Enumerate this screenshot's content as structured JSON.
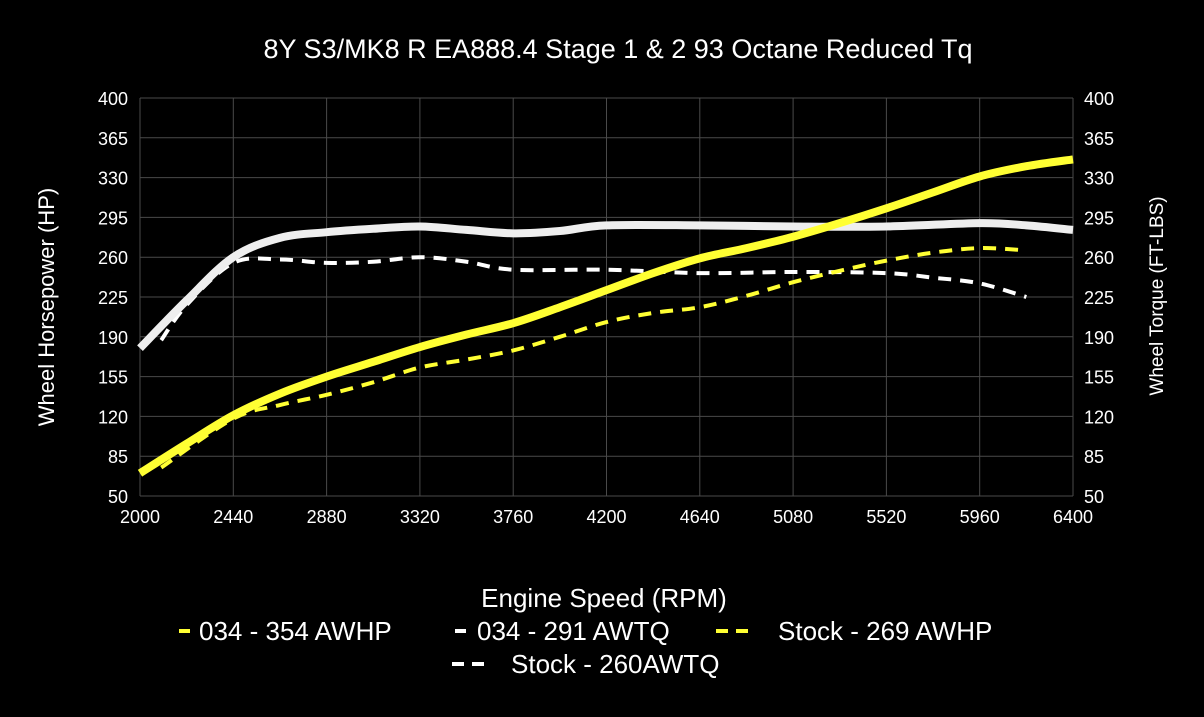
{
  "chart_data": {
    "type": "line",
    "title": "8Y S3/MK8 R EA888.4 Stage 1 & 2 93 Octane Reduced Tq",
    "xlabel": "Engine Speed (RPM)",
    "ylabel": "Wheel Horsepower (HP)",
    "y2label": "Wheel Torque (FT-LBS)",
    "xlim": [
      2000,
      6400
    ],
    "ylim": [
      50,
      400
    ],
    "y2lim": [
      50,
      400
    ],
    "grid": true,
    "legend_position": "bottom",
    "x_ticks": [
      "2000",
      "2440",
      "2880",
      "3320",
      "3760",
      "4200",
      "4640",
      "5080",
      "5520",
      "5960",
      "6400"
    ],
    "y_ticks": [
      "50",
      "85",
      "120",
      "155",
      "190",
      "225",
      "260",
      "295",
      "330",
      "365",
      "400"
    ],
    "y2_ticks": [
      "50",
      "85",
      "120",
      "155",
      "190",
      "225",
      "260",
      "295",
      "330",
      "365",
      "400"
    ],
    "series": [
      {
        "name": "034 - 354 AWHP",
        "color": "#ffff33",
        "style": "solid",
        "axis": "left",
        "x": [
          2000,
          2220,
          2440,
          2660,
          2880,
          3100,
          3320,
          3540,
          3760,
          3980,
          4200,
          4420,
          4640,
          4860,
          5080,
          5300,
          5520,
          5740,
          5960,
          6180,
          6400
        ],
        "y": [
          70,
          96,
          121,
          140,
          155,
          168,
          181,
          192,
          202,
          216,
          231,
          246,
          259,
          268,
          278,
          290,
          303,
          317,
          331,
          340,
          346
        ]
      },
      {
        "name": "034 - 291 AWTQ",
        "color": "#ffffff",
        "style": "solid",
        "axis": "right",
        "x": [
          2000,
          2220,
          2440,
          2660,
          2880,
          3100,
          3320,
          3540,
          3760,
          3980,
          4200,
          4640,
          5080,
          5520,
          5960,
          6180,
          6400
        ],
        "y": [
          180,
          222,
          260,
          277,
          282,
          285,
          287,
          284,
          281,
          283,
          288,
          288,
          287,
          287,
          290,
          288,
          284
        ]
      },
      {
        "name": "Stock - 269 AWHP",
        "color": "#ffff33",
        "style": "dashed",
        "axis": "left",
        "x": [
          2100,
          2440,
          2660,
          2880,
          3100,
          3320,
          3540,
          3760,
          3980,
          4200,
          4420,
          4640,
          4860,
          5080,
          5300,
          5520,
          5740,
          5960,
          6180
        ],
        "y": [
          75,
          118,
          130,
          139,
          150,
          163,
          170,
          178,
          190,
          203,
          211,
          216,
          226,
          238,
          248,
          257,
          264,
          268,
          266
        ]
      },
      {
        "name": "Stock - 260AWTQ",
        "color": "#ffffff",
        "style": "dashed",
        "axis": "right",
        "x": [
          2100,
          2220,
          2440,
          2660,
          2880,
          3100,
          3320,
          3540,
          3760,
          4200,
          4640,
          5080,
          5520,
          5740,
          5960,
          6180
        ],
        "y": [
          187,
          218,
          255,
          258,
          255,
          256,
          260,
          256,
          249,
          249,
          246,
          247,
          246,
          242,
          237,
          225
        ]
      }
    ]
  }
}
